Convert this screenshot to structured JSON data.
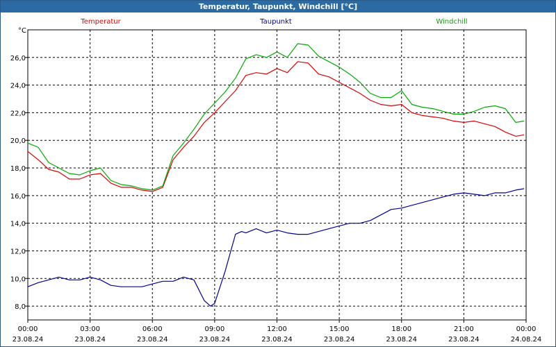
{
  "window": {
    "title": "Temperatur, Taupunkt, Windchill [°C]"
  },
  "chart_data": {
    "type": "line",
    "title": "Temperatur, Taupunkt, Windchill [°C]",
    "ylabel": "°C",
    "xlabel": "",
    "ylim": [
      7.0,
      28.0
    ],
    "xlim": [
      0,
      24
    ],
    "yticks": [
      8,
      10,
      12,
      14,
      16,
      18,
      20,
      22,
      24,
      26
    ],
    "ytick_labels": [
      "8,0",
      "10,0",
      "12,0",
      "14,0",
      "16,0",
      "18,0",
      "20,0",
      "22,0",
      "24,0",
      "26,0"
    ],
    "xticks": [
      0,
      3,
      6,
      9,
      12,
      15,
      18,
      21,
      24
    ],
    "xtick_time_labels": [
      "00:00",
      "03:00",
      "06:00",
      "09:00",
      "12:00",
      "15:00",
      "18:00",
      "21:00",
      "00:00"
    ],
    "xtick_date_labels": [
      "23.08.24",
      "23.08.24",
      "23.08.24",
      "23.08.24",
      "23.08.24",
      "23.08.24",
      "23.08.24",
      "23.08.24",
      "24.08.24"
    ],
    "grid": true,
    "legend_position": "top",
    "series": [
      {
        "name": "Temperatur",
        "color": "#e00000",
        "x": [
          0,
          0.5,
          1.0,
          1.5,
          2.0,
          2.5,
          3.0,
          3.5,
          4.0,
          4.5,
          5.0,
          5.5,
          6.0,
          6.5,
          7.0,
          7.5,
          8.0,
          8.5,
          9.0,
          9.5,
          10.0,
          10.5,
          11.0,
          11.5,
          12.0,
          12.5,
          13.0,
          13.5,
          14.0,
          14.5,
          15.0,
          15.5,
          16.0,
          16.5,
          17.0,
          17.5,
          18.0,
          18.5,
          19.0,
          19.5,
          20.0,
          20.5,
          21.0,
          21.5,
          22.0,
          22.5,
          23.0,
          23.5,
          23.9
        ],
        "values": [
          19.2,
          18.6,
          17.9,
          17.7,
          17.2,
          17.2,
          17.5,
          17.6,
          16.9,
          16.6,
          16.6,
          16.4,
          16.3,
          16.6,
          18.6,
          19.5,
          20.3,
          21.3,
          22.0,
          22.8,
          23.6,
          24.7,
          24.9,
          24.8,
          25.2,
          24.9,
          25.7,
          25.6,
          24.8,
          24.6,
          24.2,
          23.8,
          23.4,
          22.9,
          22.6,
          22.5,
          22.6,
          22.0,
          21.8,
          21.7,
          21.6,
          21.4,
          21.3,
          21.4,
          21.2,
          21.0,
          20.6,
          20.3,
          20.4
        ]
      },
      {
        "name": "Taupunkt",
        "color": "#000099",
        "x": [
          0,
          0.5,
          1.0,
          1.5,
          2.0,
          2.5,
          3.0,
          3.5,
          4.0,
          4.5,
          5.0,
          5.5,
          6.0,
          6.5,
          7.0,
          7.5,
          8.0,
          8.5,
          8.8,
          9.0,
          9.5,
          10.0,
          10.3,
          10.5,
          11.0,
          11.5,
          12.0,
          12.5,
          13.0,
          13.5,
          14.0,
          14.5,
          15.0,
          15.5,
          16.0,
          16.5,
          17.0,
          17.5,
          18.0,
          18.5,
          19.0,
          19.5,
          20.0,
          20.5,
          21.0,
          21.5,
          22.0,
          22.5,
          23.0,
          23.5,
          23.9
        ],
        "values": [
          9.4,
          9.7,
          9.9,
          10.1,
          9.9,
          9.9,
          10.1,
          9.9,
          9.5,
          9.4,
          9.4,
          9.4,
          9.6,
          9.8,
          9.8,
          10.1,
          9.9,
          8.4,
          8.0,
          8.2,
          10.5,
          13.2,
          13.4,
          13.3,
          13.6,
          13.3,
          13.5,
          13.3,
          13.2,
          13.2,
          13.4,
          13.6,
          13.8,
          14.0,
          14.0,
          14.2,
          14.6,
          15.0,
          15.1,
          15.3,
          15.5,
          15.7,
          15.9,
          16.1,
          16.2,
          16.1,
          16.0,
          16.2,
          16.2,
          16.4,
          16.5
        ]
      },
      {
        "name": "Windchill",
        "color": "#00aa00",
        "x": [
          0,
          0.5,
          1.0,
          1.5,
          2.0,
          2.5,
          3.0,
          3.5,
          4.0,
          4.5,
          5.0,
          5.5,
          6.0,
          6.5,
          7.0,
          7.5,
          8.0,
          8.5,
          9.0,
          9.5,
          10.0,
          10.5,
          11.0,
          11.5,
          12.0,
          12.5,
          13.0,
          13.5,
          14.0,
          14.5,
          15.0,
          15.5,
          16.0,
          16.5,
          17.0,
          17.5,
          18.0,
          18.5,
          19.0,
          19.5,
          20.0,
          20.5,
          21.0,
          21.5,
          22.0,
          22.5,
          23.0,
          23.5,
          23.9
        ],
        "values": [
          19.8,
          19.5,
          18.4,
          18.0,
          17.6,
          17.5,
          17.8,
          18.0,
          17.1,
          16.8,
          16.7,
          16.5,
          16.4,
          16.7,
          18.9,
          19.8,
          20.8,
          21.9,
          22.7,
          23.5,
          24.5,
          25.9,
          26.2,
          26.0,
          26.4,
          26.0,
          27.0,
          26.9,
          26.1,
          25.7,
          25.3,
          24.8,
          24.2,
          23.4,
          23.1,
          23.1,
          23.6,
          22.6,
          22.4,
          22.3,
          22.1,
          21.9,
          21.9,
          22.1,
          22.4,
          22.5,
          22.3,
          21.3,
          21.4
        ]
      }
    ]
  }
}
